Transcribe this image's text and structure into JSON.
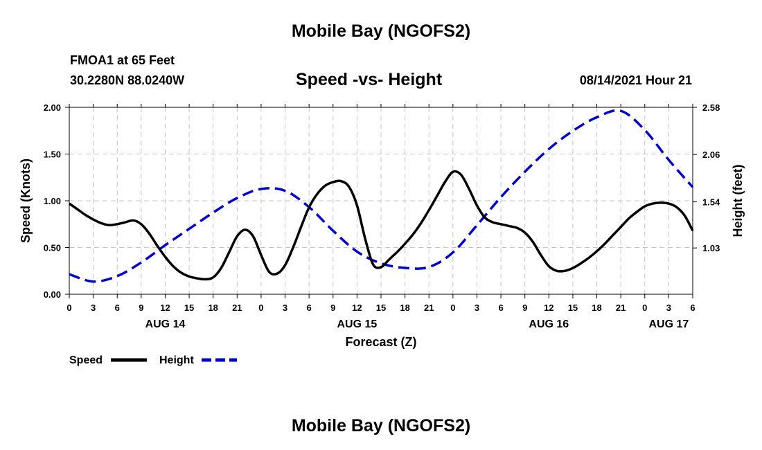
{
  "header": {
    "title": "Mobile Bay (NGOFS2)",
    "station": "FMOA1 at 65 Feet",
    "coords": "30.2280N  88.0240W",
    "subtitle": "Speed -vs- Height",
    "datetime": "08/14/2021 Hour 21"
  },
  "footer": {
    "title": "Mobile Bay (NGOFS2)"
  },
  "chart_data": {
    "type": "line",
    "title": "Speed -vs- Height",
    "xlabel": "Forecast (Z)",
    "ylabel_left": "Speed (Knots)",
    "ylabel_right": "Height (feet)",
    "xlim": [
      0,
      78
    ],
    "ylim_left": [
      0,
      2
    ],
    "ylim_right": [
      0.52,
      2.58
    ],
    "grid": true,
    "left_ticks": [
      "0.00",
      "0.50",
      "1.00",
      "1.50",
      "2.00"
    ],
    "right_ticks": [
      "1.03",
      "1.54",
      "2.06",
      "2.58"
    ],
    "x_ticks": [
      "0",
      "3",
      "6",
      "9",
      "12",
      "15",
      "18",
      "21",
      "0",
      "3",
      "6",
      "9",
      "12",
      "15",
      "18",
      "21",
      "0",
      "3",
      "6",
      "9",
      "12",
      "15",
      "18",
      "21",
      "0",
      "3",
      "6"
    ],
    "date_labels": [
      {
        "label": "AUG 14",
        "hour": 12
      },
      {
        "label": "AUG 15",
        "hour": 36
      },
      {
        "label": "AUG 16",
        "hour": 60
      },
      {
        "label": "AUG 17",
        "hour": 75
      }
    ],
    "legend": {
      "placement": "bottom-left",
      "entries": [
        "Speed",
        "Height"
      ]
    },
    "series": [
      {
        "name": "Speed",
        "axis": "left",
        "color": "#000000",
        "dash": "solid",
        "x": [
          0,
          1,
          2,
          3,
          4,
          5,
          6,
          7,
          8,
          9,
          10,
          11,
          12,
          13,
          14,
          15,
          16,
          17,
          18,
          19,
          20,
          21,
          22,
          23,
          24,
          25,
          26,
          27,
          28,
          29,
          30,
          31,
          32,
          33,
          34,
          35,
          36,
          37,
          38,
          39,
          40,
          41,
          42,
          43,
          44,
          45,
          46,
          47,
          48,
          49,
          50,
          51,
          52,
          53,
          54,
          55,
          56,
          57,
          58,
          59,
          60,
          61,
          62,
          63,
          64,
          65,
          66,
          67,
          68,
          69,
          70,
          71,
          72,
          73,
          74,
          75,
          76,
          77,
          78
        ],
        "values": [
          0.97,
          0.91,
          0.85,
          0.8,
          0.76,
          0.74,
          0.75,
          0.77,
          0.79,
          0.75,
          0.65,
          0.52,
          0.4,
          0.3,
          0.23,
          0.19,
          0.17,
          0.16,
          0.18,
          0.28,
          0.45,
          0.62,
          0.69,
          0.62,
          0.42,
          0.24,
          0.22,
          0.31,
          0.5,
          0.72,
          0.93,
          1.07,
          1.16,
          1.2,
          1.21,
          1.15,
          0.95,
          0.6,
          0.32,
          0.29,
          0.37,
          0.45,
          0.54,
          0.64,
          0.76,
          0.9,
          1.05,
          1.2,
          1.31,
          1.28,
          1.13,
          0.95,
          0.82,
          0.77,
          0.75,
          0.73,
          0.71,
          0.66,
          0.56,
          0.42,
          0.3,
          0.25,
          0.25,
          0.28,
          0.33,
          0.39,
          0.46,
          0.54,
          0.63,
          0.72,
          0.81,
          0.88,
          0.94,
          0.97,
          0.98,
          0.97,
          0.93,
          0.84,
          0.68
        ]
      },
      {
        "name": "Height",
        "axis": "right",
        "color": "#0000cc",
        "dash": "dashed",
        "x": [
          0,
          3,
          6,
          9,
          12,
          15,
          18,
          21,
          24,
          27,
          30,
          33,
          36,
          39,
          42,
          45,
          48,
          51,
          54,
          57,
          60,
          63,
          66,
          69,
          72,
          75,
          78
        ],
        "values": [
          0.74,
          0.66,
          0.72,
          0.87,
          1.06,
          1.24,
          1.42,
          1.58,
          1.68,
          1.66,
          1.48,
          1.22,
          0.99,
          0.86,
          0.81,
          0.82,
          0.98,
          1.28,
          1.59,
          1.87,
          2.12,
          2.32,
          2.47,
          2.54,
          2.33,
          2.0,
          1.7
        ]
      }
    ]
  }
}
